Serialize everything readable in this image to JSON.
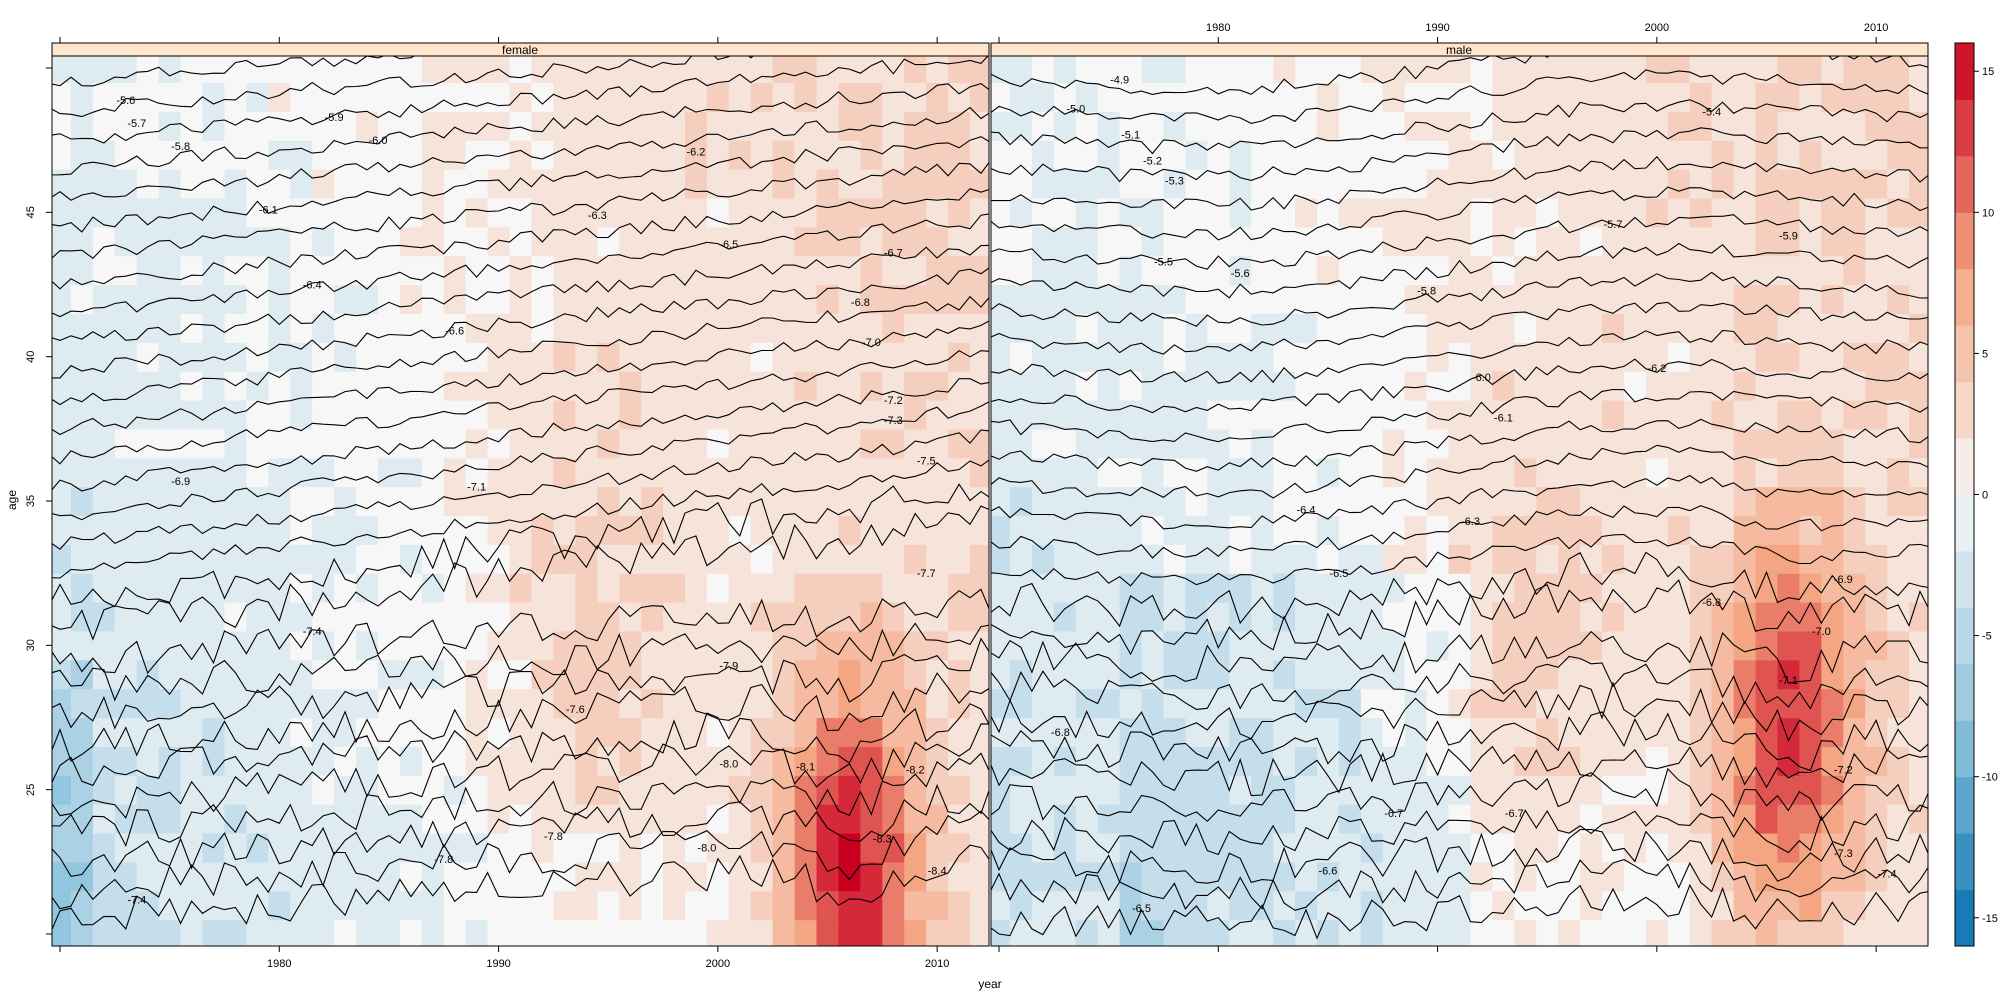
{
  "chart_data": {
    "type": "heatmap",
    "title": "",
    "xlabel": "year",
    "ylabel": "age",
    "xlim": [
      1970,
      2012
    ],
    "ylim": [
      20,
      50
    ],
    "x_ticks": [
      1980,
      1990,
      2000,
      2010
    ],
    "y_ticks": [
      25,
      30,
      35,
      40,
      45
    ],
    "colorbar": {
      "range": [
        -16,
        16
      ],
      "ticks": [
        -15,
        -10,
        -5,
        0,
        5,
        10,
        15
      ],
      "negative_color": "#0571b0",
      "zero_color": "#f7f7f7",
      "positive_color": "#ca0020"
    },
    "panels": [
      {
        "name": "female",
        "peak_year": 2006,
        "peak_age": 22,
        "peak_value": 14,
        "contour_labels": [
          {
            "text": "-5.6",
            "year": 1973,
            "age": 48.9
          },
          {
            "text": "-5.7",
            "year": 1973.5,
            "age": 48.1
          },
          {
            "text": "-5.8",
            "year": 1975.5,
            "age": 47.3
          },
          {
            "text": "-5.9",
            "year": 1982.5,
            "age": 48.3
          },
          {
            "text": "-6.0",
            "year": 1984.5,
            "age": 47.5
          },
          {
            "text": "-6.2",
            "year": 1999,
            "age": 47.1
          },
          {
            "text": "-6.1",
            "year": 1979.5,
            "age": 45.1
          },
          {
            "text": "-6.3",
            "year": 1994.5,
            "age": 44.9
          },
          {
            "text": "-6.5",
            "year": 2000.5,
            "age": 43.9
          },
          {
            "text": "-6.7",
            "year": 2008,
            "age": 43.6
          },
          {
            "text": "-6.4",
            "year": 1981.5,
            "age": 42.5
          },
          {
            "text": "-6.8",
            "year": 2006.5,
            "age": 41.9
          },
          {
            "text": "-6.6",
            "year": 1988,
            "age": 40.9
          },
          {
            "text": "-7.0",
            "year": 2007,
            "age": 40.5
          },
          {
            "text": "-7.2",
            "year": 2008,
            "age": 38.5
          },
          {
            "text": "-7.3",
            "year": 2008,
            "age": 37.8
          },
          {
            "text": "-7.5",
            "year": 2009.5,
            "age": 36.4
          },
          {
            "text": "-6.9",
            "year": 1975.5,
            "age": 35.7
          },
          {
            "text": "-7.1",
            "year": 1989,
            "age": 35.5
          },
          {
            "text": "-7.7",
            "year": 2009.5,
            "age": 32.5
          },
          {
            "text": "-7.4",
            "year": 1981.5,
            "age": 30.5
          },
          {
            "text": "-7.9",
            "year": 2000.5,
            "age": 29.3
          },
          {
            "text": "-7.6",
            "year": 1993.5,
            "age": 27.8
          },
          {
            "text": "-8.0",
            "year": 2000.5,
            "age": 25.9
          },
          {
            "text": "-8.1",
            "year": 2004,
            "age": 25.8
          },
          {
            "text": "-8.2",
            "year": 2009,
            "age": 25.7
          },
          {
            "text": "-7.8",
            "year": 1992.5,
            "age": 23.4
          },
          {
            "text": "-8.0",
            "year": 1999.5,
            "age": 23.0
          },
          {
            "text": "-8.3",
            "year": 2007.5,
            "age": 23.3
          },
          {
            "text": "-8.4",
            "year": 2010,
            "age": 22.2
          },
          {
            "text": "-7.8",
            "year": 1987.5,
            "age": 22.6
          },
          {
            "text": "-7.4",
            "year": 1973.5,
            "age": 21.2
          }
        ]
      },
      {
        "name": "male",
        "peak_year": 2006,
        "peak_age": 27,
        "peak_value": 12,
        "contour_labels": [
          {
            "text": "-4.9",
            "year": 1975.5,
            "age": 49.6
          },
          {
            "text": "-5.0",
            "year": 1973.5,
            "age": 48.6
          },
          {
            "text": "-5.1",
            "year": 1976,
            "age": 47.7
          },
          {
            "text": "-5.2",
            "year": 1977,
            "age": 46.8
          },
          {
            "text": "-5.3",
            "year": 1978,
            "age": 46.1
          },
          {
            "text": "-5.4",
            "year": 2002.5,
            "age": 48.5
          },
          {
            "text": "-5.7",
            "year": 1998,
            "age": 44.6
          },
          {
            "text": "-5.9",
            "year": 2006,
            "age": 44.2
          },
          {
            "text": "-5.5",
            "year": 1977.5,
            "age": 43.3
          },
          {
            "text": "-5.6",
            "year": 1981,
            "age": 42.9
          },
          {
            "text": "-5.8",
            "year": 1989.5,
            "age": 42.3
          },
          {
            "text": "-6.2",
            "year": 2000,
            "age": 39.6
          },
          {
            "text": "-6.0",
            "year": 1992,
            "age": 39.3
          },
          {
            "text": "-6.1",
            "year": 1993,
            "age": 37.9
          },
          {
            "text": "-6.4",
            "year": 1984,
            "age": 34.7
          },
          {
            "text": "-6.3",
            "year": 1991.5,
            "age": 34.3
          },
          {
            "text": "-6.9",
            "year": 2008.5,
            "age": 32.3
          },
          {
            "text": "-6.5",
            "year": 1985.5,
            "age": 32.5
          },
          {
            "text": "-6.8",
            "year": 2002.5,
            "age": 31.5
          },
          {
            "text": "-7.0",
            "year": 2007.5,
            "age": 30.5
          },
          {
            "text": "-7.1",
            "year": 2006,
            "age": 28.8
          },
          {
            "text": "-7.2",
            "year": 2008.5,
            "age": 25.7
          },
          {
            "text": "-6.7",
            "year": 1988,
            "age": 24.2
          },
          {
            "text": "-6.7",
            "year": 1993.5,
            "age": 24.2
          },
          {
            "text": "-6.6",
            "year": 1985,
            "age": 22.2
          },
          {
            "text": "-7.3",
            "year": 2008.5,
            "age": 22.8
          },
          {
            "text": "-7.4",
            "year": 2010.5,
            "age": 22.1
          },
          {
            "text": "-6.5",
            "year": 1976.5,
            "age": 20.9
          },
          {
            "text": "-6.8",
            "year": 1972.8,
            "age": 27.0
          }
        ]
      }
    ]
  }
}
